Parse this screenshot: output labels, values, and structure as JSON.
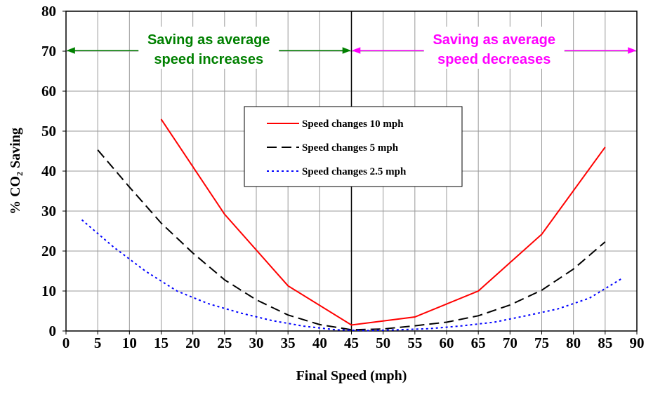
{
  "chart_data": {
    "type": "line",
    "x_label": "Final Speed (mph)",
    "y_label": "% CO₂ Saving",
    "xlim": [
      0,
      90
    ],
    "xticks": [
      0,
      5,
      10,
      15,
      20,
      25,
      30,
      35,
      40,
      45,
      50,
      55,
      60,
      65,
      70,
      75,
      80,
      85,
      90
    ],
    "ylim": [
      0,
      80
    ],
    "yticks": [
      0,
      10,
      20,
      30,
      40,
      50,
      60,
      70,
      80
    ],
    "grid": true,
    "vline": 45,
    "annotations": [
      {
        "lines": [
          "Saving as average",
          "speed increases"
        ],
        "color": "#008000"
      },
      {
        "lines": [
          "Saving as average",
          "speed decreases"
        ],
        "color": "#ff00ff"
      }
    ],
    "series": [
      {
        "name": "Speed changes 10 mph",
        "color": "#ff0000",
        "dash": "solid",
        "x": [
          15,
          25,
          35,
          45,
          55,
          65,
          75,
          85
        ],
        "values": [
          53,
          29.2,
          11.3,
          1.5,
          3.5,
          10,
          24.2,
          46
        ]
      },
      {
        "name": "Speed changes 5 mph",
        "color": "#000000",
        "dash": "dashed",
        "x": [
          5,
          10,
          15,
          20,
          25,
          30,
          35,
          40,
          45,
          50,
          55,
          60,
          65,
          70,
          75,
          80,
          85
        ],
        "values": [
          45.3,
          36,
          27,
          19.5,
          12.8,
          7.8,
          4,
          1.6,
          0.3,
          0.5,
          1.3,
          2.2,
          3.8,
          6.5,
          10.2,
          15.5,
          22.3
        ]
      },
      {
        "name": "Speed changes 2.5 mph",
        "color": "#0000ff",
        "dash": "dotted",
        "x": [
          2.5,
          7.5,
          12.5,
          17.5,
          22.5,
          27.5,
          32.5,
          37.5,
          42.5,
          47.5,
          52.5,
          57.5,
          62.5,
          67.5,
          72.5,
          77.5,
          82.5,
          87.5
        ],
        "values": [
          27.8,
          21,
          15,
          10,
          6.8,
          4.5,
          2.6,
          1.2,
          0.3,
          0.1,
          0.3,
          0.6,
          1.3,
          2.2,
          3.8,
          5.5,
          8.2,
          13
        ]
      }
    ]
  }
}
